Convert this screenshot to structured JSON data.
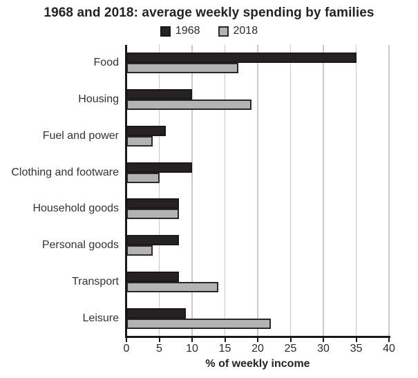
{
  "chart_data": {
    "type": "bar",
    "orientation": "horizontal",
    "title": "1968 and 2018: average weekly spending by families",
    "categories": [
      "Food",
      "Housing",
      "Fuel and power",
      "Clothing and footware",
      "Household goods",
      "Personal goods",
      "Transport",
      "Leisure"
    ],
    "series": [
      {
        "name": "1968",
        "color": "#262223",
        "border_color": "#1a1718",
        "values": [
          35,
          10,
          6,
          10,
          8,
          8,
          8,
          9
        ]
      },
      {
        "name": "2018",
        "color": "#b3b3b3",
        "border_color": "#2b2728",
        "values": [
          17,
          19,
          4,
          5,
          8,
          4,
          14,
          22
        ]
      }
    ],
    "xlabel": "% of weekly income",
    "xlim": [
      0,
      40
    ],
    "xticks": [
      0,
      5,
      10,
      15,
      20,
      25,
      30,
      35,
      40
    ],
    "grid": true,
    "gridline_color": "#c9c9c9",
    "axis_color": "#1a1718",
    "background": "#ffffff",
    "legend_position": "top"
  }
}
